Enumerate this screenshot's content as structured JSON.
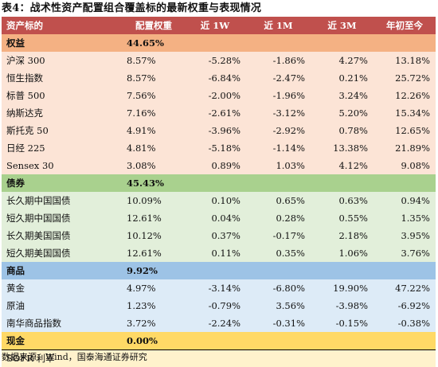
{
  "caption": "表4：战术性资产配置组合覆盖标的最新权重与表现情况",
  "headers": [
    "资产标的",
    "配置权重",
    "近 1W",
    "近 1M",
    "近 3M",
    "年初至今"
  ],
  "colors": {
    "header": "#c0504d",
    "equity_cat": "#f4b183",
    "equity_row": "#fce4d6",
    "bond_cat": "#a9d18e",
    "bond_row": "#e2efda",
    "commodity_cat": "#9dc3e6",
    "commodity_row": "#ddebf7",
    "cash_cat": "#ffd966",
    "cash_row": "#fff2cc"
  },
  "sections": [
    {
      "key": "equity",
      "category": "权益",
      "weight": "44.65%",
      "rows": [
        {
          "name": "沪深 300",
          "weight": "8.57%",
          "w1": "-5.28%",
          "m1": "-1.86%",
          "m3": "4.27%",
          "ytd": "13.18%"
        },
        {
          "name": "恒生指数",
          "weight": "8.57%",
          "w1": "-6.84%",
          "m1": "-2.47%",
          "m3": "0.21%",
          "ytd": "25.72%"
        },
        {
          "name": "标普 500",
          "weight": "7.56%",
          "w1": "-2.00%",
          "m1": "-1.96%",
          "m3": "3.24%",
          "ytd": "12.26%"
        },
        {
          "name": "纳斯达克",
          "weight": "7.16%",
          "w1": "-2.61%",
          "m1": "-3.12%",
          "m3": "5.20%",
          "ytd": "15.34%"
        },
        {
          "name": "斯托克 50",
          "weight": "4.91%",
          "w1": "-3.96%",
          "m1": "-2.92%",
          "m3": "0.78%",
          "ytd": "12.65%"
        },
        {
          "name": "日经 225",
          "weight": "4.81%",
          "w1": "-5.18%",
          "m1": "-1.14%",
          "m3": "13.38%",
          "ytd": "21.89%"
        },
        {
          "name": "Sensex 30",
          "weight": "3.08%",
          "w1": "0.89%",
          "m1": "1.03%",
          "m3": "4.12%",
          "ytd": "9.08%"
        }
      ]
    },
    {
      "key": "bond",
      "category": "债券",
      "weight": "45.43%",
      "rows": [
        {
          "name": "长久期中国国债",
          "weight": "10.09%",
          "w1": "0.10%",
          "m1": "0.65%",
          "m3": "0.63%",
          "ytd": "0.94%"
        },
        {
          "name": "短久期中国国债",
          "weight": "12.61%",
          "w1": "0.04%",
          "m1": "0.28%",
          "m3": "0.55%",
          "ytd": "1.35%"
        },
        {
          "name": "长久期美国国债",
          "weight": "10.12%",
          "w1": "0.37%",
          "m1": "-0.17%",
          "m3": "2.18%",
          "ytd": "3.95%"
        },
        {
          "name": "短久期美国国债",
          "weight": "12.61%",
          "w1": "0.11%",
          "m1": "0.35%",
          "m3": "1.06%",
          "ytd": "3.76%"
        }
      ]
    },
    {
      "key": "commodity",
      "category": "商品",
      "weight": "9.92%",
      "rows": [
        {
          "name": "黄金",
          "weight": "4.97%",
          "w1": "-3.14%",
          "m1": "-6.80%",
          "m3": "19.90%",
          "ytd": "47.22%"
        },
        {
          "name": "原油",
          "weight": "1.23%",
          "w1": "-0.79%",
          "m1": "3.56%",
          "m3": "-3.98%",
          "ytd": "-6.92%"
        },
        {
          "name": "南华商品指数",
          "weight": "3.72%",
          "w1": "-2.24%",
          "m1": "-0.31%",
          "m3": "-0.15%",
          "ytd": "-0.38%"
        }
      ]
    },
    {
      "key": "cash",
      "category": "现金",
      "weight": "0.00%",
      "rows": [
        {
          "name": "SOFR 利率",
          "weight": "",
          "w1": "",
          "m1": "",
          "m3": "",
          "ytd": ""
        }
      ]
    }
  ],
  "source": "数据来源：Wind，国泰海通证券研究"
}
